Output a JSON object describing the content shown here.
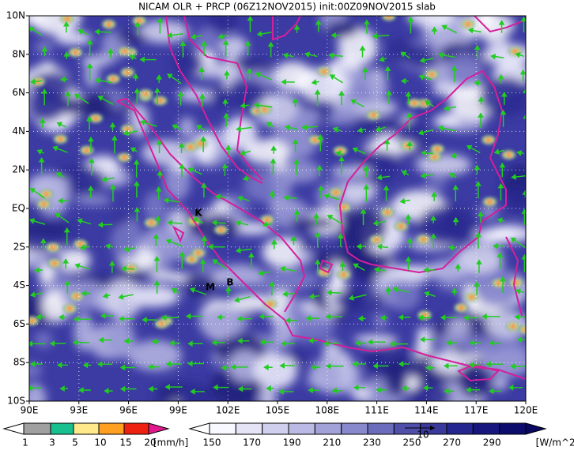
{
  "title": "NICAM OLR + PRCP (06Z12NOV2015) init:00Z09NOV2015 slab",
  "map": {
    "lon_labels": [
      "90E",
      "93E",
      "96E",
      "99E",
      "102E",
      "105E",
      "108E",
      "111E",
      "114E",
      "117E",
      "120E"
    ],
    "lat_labels": [
      "10N",
      "8N",
      "6N",
      "4N",
      "2N",
      "EQ",
      "2S",
      "4S",
      "6S",
      "8S",
      "10S"
    ],
    "station_labels": [
      "K",
      "M",
      "B"
    ]
  },
  "vector_reference": "10",
  "legend_precip": {
    "labels": [
      "1",
      "3",
      "5",
      "10",
      "15",
      "20"
    ],
    "unit": "[mm/h]"
  },
  "legend_olr": {
    "labels": [
      "150",
      "170",
      "190",
      "210",
      "230",
      "250",
      "270",
      "290"
    ],
    "unit": "[W/m^2]"
  }
}
